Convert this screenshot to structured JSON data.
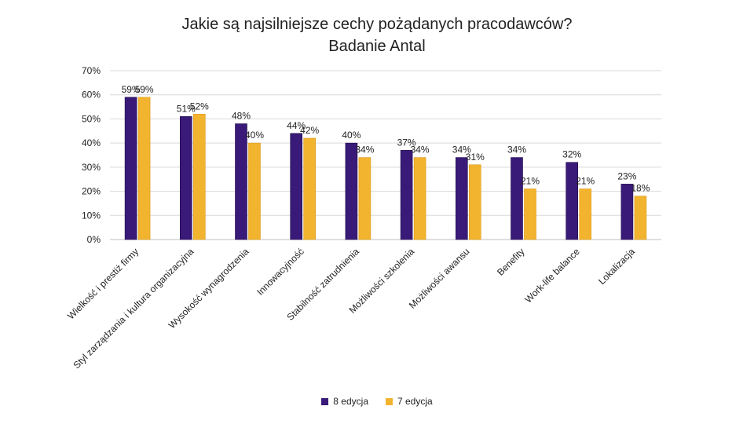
{
  "chart_data": {
    "type": "bar",
    "title": "Jakie są najsilniejsze cechy pożądanych pracodawców?",
    "subtitle": "Badanie Antal",
    "categories": [
      "Wielkość i prestiż firmy",
      "Styl zarządzania i kultura organizacyjna",
      "Wysokość wynagrodzenia",
      "Innowacyjność",
      "Stabilność zatrudnienia",
      "Możliwości szkolenia",
      "Możliwości awansu",
      "Benefity",
      "Work-life balance",
      "Lokalizacja"
    ],
    "series": [
      {
        "name": "8 edycja",
        "color": "#3a1a78",
        "values": [
          59,
          51,
          48,
          44,
          40,
          37,
          34,
          34,
          32,
          23
        ]
      },
      {
        "name": "7 edycja",
        "color": "#f2b42f",
        "values": [
          59,
          52,
          40,
          42,
          34,
          34,
          31,
          21,
          21,
          18
        ]
      }
    ],
    "value_labels": [
      [
        "59%",
        "51%",
        "48%",
        "44%",
        "40%",
        "37%",
        "34%",
        "34%",
        "32%",
        "23%"
      ],
      [
        "59%",
        "52%",
        "40%",
        "42%",
        "34%",
        "34%",
        "31%",
        "21%",
        "21%",
        "18%"
      ]
    ],
    "y_ticks": [
      "0%",
      "10%",
      "20%",
      "30%",
      "40%",
      "50%",
      "60%",
      "70%"
    ],
    "ylim": [
      0,
      70
    ],
    "xlabel": "",
    "ylabel": "",
    "grid": true,
    "legend_position": "bottom"
  }
}
